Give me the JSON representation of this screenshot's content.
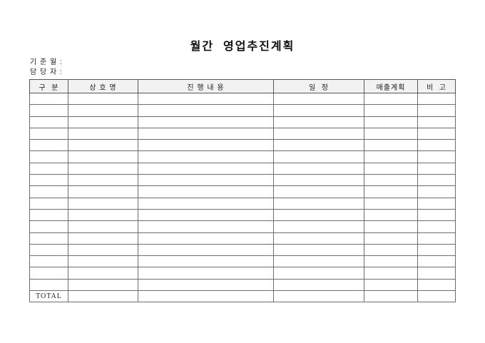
{
  "title": "월간  영업추진계획",
  "meta": {
    "base_month_label": "기 준 월 :",
    "base_month_value": "",
    "manager_label": "담 당 자 :",
    "manager_value": ""
  },
  "table": {
    "columns": [
      {
        "label": "구  분"
      },
      {
        "label": "상 호 명"
      },
      {
        "label": "진 행 내 용"
      },
      {
        "label": "일  정"
      },
      {
        "label": "매출계획"
      },
      {
        "label": "비  고"
      }
    ],
    "empty_row_count": 17,
    "total_label": "TOTAL"
  },
  "colors": {
    "header_background": "#f2f2f2",
    "border": "#555555",
    "text": "#1a1a1a"
  }
}
